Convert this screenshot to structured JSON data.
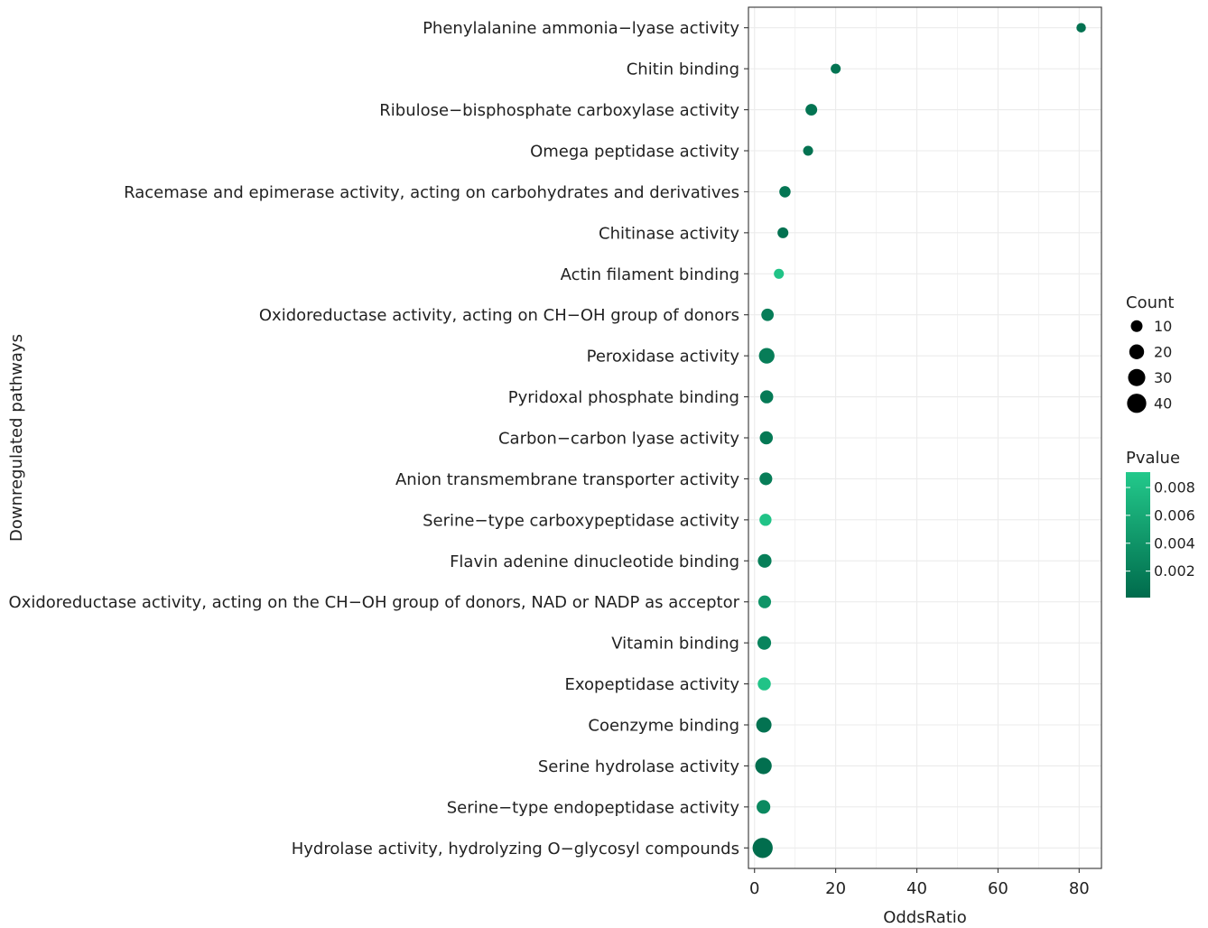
{
  "chart_data": {
    "type": "scatter",
    "title": "",
    "xlabel": "OddsRatio",
    "ylabel": "Downregulated pathways",
    "xlim": [
      -1.5,
      85.5
    ],
    "xticks": [
      0,
      20,
      40,
      60,
      80
    ],
    "grid": true,
    "legend_position": "right",
    "size_legend": {
      "title": "Count",
      "values": [
        10,
        20,
        30,
        40
      ]
    },
    "color_legend": {
      "title": "Pvalue",
      "ticks": [
        "0.008",
        "0.006",
        "0.004",
        "0.002"
      ],
      "tick_values": [
        0.008,
        0.006,
        0.004,
        0.002
      ],
      "range": [
        0.0001,
        0.0091
      ],
      "low_color": "#006b4c",
      "high_color": "#23c98b"
    },
    "points": [
      {
        "category": "Phenylalanine ammonia−lyase activity",
        "x": 80.5,
        "count": 5,
        "pvalue": 0.0008
      },
      {
        "category": "Chitin binding",
        "x": 20.0,
        "count": 6,
        "pvalue": 0.001
      },
      {
        "category": "Ribulose−bisphosphate carboxylase activity",
        "x": 14.0,
        "count": 10,
        "pvalue": 0.001
      },
      {
        "category": "Omega peptidase activity",
        "x": 13.2,
        "count": 6,
        "pvalue": 0.0008
      },
      {
        "category": "Racemase and epimerase activity, acting on carbohydrates and derivatives",
        "x": 7.5,
        "count": 9,
        "pvalue": 0.0012
      },
      {
        "category": "Chitinase activity",
        "x": 7.0,
        "count": 8,
        "pvalue": 0.0008
      },
      {
        "category": "Actin filament binding",
        "x": 6.0,
        "count": 6,
        "pvalue": 0.0085
      },
      {
        "category": "Oxidoreductase activity, acting on CH−OH group of donors",
        "x": 3.2,
        "count": 12,
        "pvalue": 0.0018
      },
      {
        "category": "Peroxidase activity",
        "x": 3.0,
        "count": 23,
        "pvalue": 0.0018
      },
      {
        "category": "Pyridoxal phosphate binding",
        "x": 3.0,
        "count": 14,
        "pvalue": 0.0015
      },
      {
        "category": "Carbon−carbon lyase activity",
        "x": 2.9,
        "count": 14,
        "pvalue": 0.0014
      },
      {
        "category": "Anion transmembrane transporter activity",
        "x": 2.8,
        "count": 13,
        "pvalue": 0.0018
      },
      {
        "category": "Serine−type carboxypeptidase activity",
        "x": 2.7,
        "count": 11,
        "pvalue": 0.0085
      },
      {
        "category": "Flavin adenine dinucleotide binding",
        "x": 2.5,
        "count": 16,
        "pvalue": 0.002
      },
      {
        "category": "Oxidoreductase activity, acting on the CH−OH group of donors, NAD or NADP as acceptor",
        "x": 2.5,
        "count": 13,
        "pvalue": 0.004
      },
      {
        "category": "Vitamin binding",
        "x": 2.4,
        "count": 16,
        "pvalue": 0.0025
      },
      {
        "category": "Exopeptidase activity",
        "x": 2.4,
        "count": 14,
        "pvalue": 0.0085
      },
      {
        "category": "Coenzyme binding",
        "x": 2.3,
        "count": 22,
        "pvalue": 0.0008
      },
      {
        "category": "Serine hydrolase activity",
        "x": 2.2,
        "count": 27,
        "pvalue": 0.0005
      },
      {
        "category": "Serine−type endopeptidase activity",
        "x": 2.2,
        "count": 16,
        "pvalue": 0.003
      },
      {
        "category": "Hydrolase activity, hydrolyzing O−glycosyl compounds",
        "x": 2.0,
        "count": 45,
        "pvalue": 0.0003
      }
    ]
  }
}
